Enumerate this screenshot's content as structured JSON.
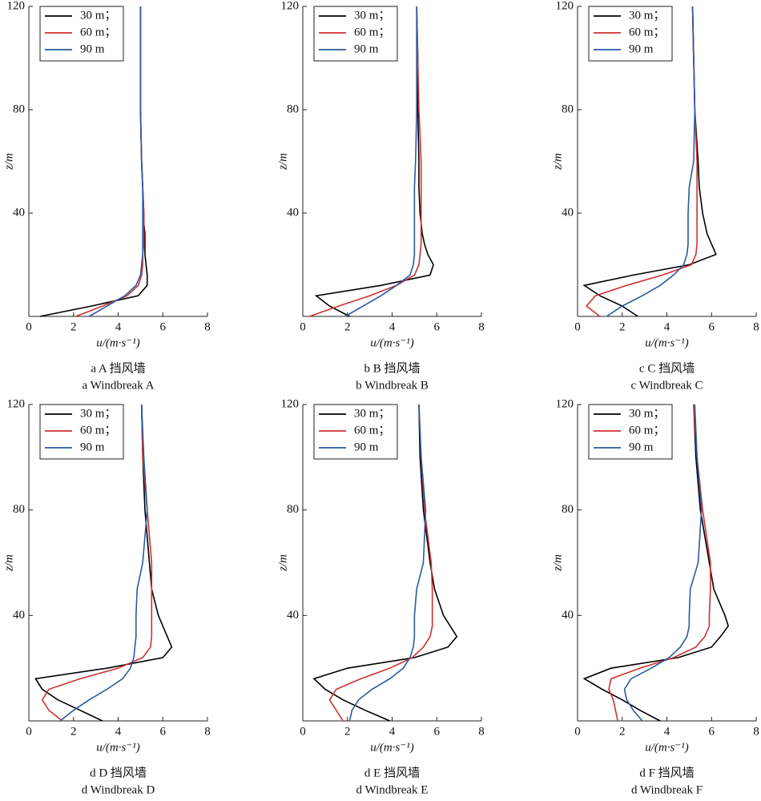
{
  "chart_data": [
    {
      "type": "line",
      "x_label": "u/(m·s⁻¹)",
      "y_label": "z/m",
      "caption_cn": "a A 挡风墙",
      "caption_en": "a Windbreak A",
      "y": [
        0,
        4,
        8,
        12,
        16,
        20,
        24,
        28,
        32,
        36,
        40,
        50,
        60,
        80,
        100,
        120
      ],
      "series": [
        {
          "name": "30 m；",
          "color": "#000000",
          "values": [
            0.5,
            2.8,
            4.9,
            5.3,
            5.3,
            5.25,
            5.2,
            5.2,
            5.2,
            5.15,
            5.15,
            5.1,
            5.05,
            5.0,
            5.0,
            5.0
          ]
        },
        {
          "name": "60 m；",
          "color": "#d03030",
          "values": [
            2.1,
            3.3,
            4.4,
            4.9,
            5.05,
            5.1,
            5.1,
            5.15,
            5.15,
            5.15,
            5.15,
            5.1,
            5.05,
            5.0,
            5.0,
            5.0
          ]
        },
        {
          "name": "90 m",
          "color": "#2a5aa0",
          "values": [
            2.7,
            3.5,
            4.3,
            4.8,
            5.0,
            5.05,
            5.1,
            5.1,
            5.1,
            5.1,
            5.1,
            5.1,
            5.05,
            5.0,
            5.0,
            5.0
          ]
        }
      ],
      "xlim": [
        0,
        8
      ],
      "xticks": [
        0,
        2,
        4,
        6,
        8
      ],
      "ylim": [
        0,
        120
      ],
      "yticks": [
        40,
        80,
        120
      ],
      "legend": "upper left"
    },
    {
      "type": "line",
      "x_label": "u/(m·s⁻¹)",
      "y_label": "z/m",
      "caption_cn": "b B 挡风墙",
      "caption_en": "b Windbreak B",
      "y": [
        0,
        4,
        8,
        12,
        16,
        20,
        24,
        28,
        32,
        36,
        40,
        50,
        60,
        80,
        100,
        120
      ],
      "series": [
        {
          "name": "30 m；",
          "color": "#000000",
          "values": [
            2.1,
            1.2,
            0.6,
            3.5,
            5.7,
            5.85,
            5.6,
            5.45,
            5.35,
            5.3,
            5.25,
            5.2,
            5.2,
            5.15,
            5.15,
            5.1
          ]
        },
        {
          "name": "60 m；",
          "color": "#d03030",
          "values": [
            0.3,
            1.6,
            3.0,
            4.2,
            5.0,
            5.2,
            5.25,
            5.3,
            5.3,
            5.3,
            5.3,
            5.3,
            5.3,
            5.2,
            5.15,
            5.1
          ]
        },
        {
          "name": "90 m",
          "color": "#2a5aa0",
          "values": [
            1.9,
            2.7,
            3.5,
            4.2,
            4.8,
            4.95,
            5.0,
            5.0,
            5.0,
            5.0,
            5.0,
            5.0,
            5.05,
            5.1,
            5.1,
            5.1
          ]
        }
      ],
      "xlim": [
        0,
        8
      ],
      "xticks": [
        0,
        2,
        4,
        6,
        8
      ],
      "ylim": [
        0,
        120
      ],
      "yticks": [
        40,
        80,
        120
      ],
      "legend": "upper left"
    },
    {
      "type": "line",
      "x_label": "u/(m·s⁻¹)",
      "y_label": "z/m",
      "caption_cn": "c C 挡风墙",
      "caption_en": "c Windbreak C",
      "y": [
        0,
        4,
        8,
        12,
        16,
        20,
        24,
        28,
        32,
        36,
        40,
        50,
        60,
        80,
        100,
        120
      ],
      "series": [
        {
          "name": "30 m；",
          "color": "#000000",
          "values": [
            2.7,
            2.0,
            1.0,
            0.3,
            2.5,
            5.0,
            6.2,
            6.0,
            5.8,
            5.7,
            5.6,
            5.45,
            5.4,
            5.25,
            5.2,
            5.15
          ]
        },
        {
          "name": "60 m；",
          "color": "#d03030",
          "values": [
            1.0,
            0.4,
            0.8,
            2.2,
            3.8,
            5.1,
            5.3,
            5.35,
            5.35,
            5.35,
            5.35,
            5.35,
            5.35,
            5.25,
            5.2,
            5.15
          ]
        },
        {
          "name": "90 m",
          "color": "#2a5aa0",
          "values": [
            1.3,
            2.0,
            2.9,
            3.7,
            4.3,
            4.75,
            4.9,
            4.95,
            4.95,
            4.95,
            4.95,
            5.0,
            5.2,
            5.25,
            5.2,
            5.15
          ]
        }
      ],
      "xlim": [
        0,
        8
      ],
      "xticks": [
        0,
        2,
        4,
        6,
        8
      ],
      "ylim": [
        0,
        120
      ],
      "yticks": [
        40,
        80,
        120
      ],
      "legend": "upper left"
    },
    {
      "type": "line",
      "x_label": "u/(m·s⁻¹)",
      "y_label": "z/m",
      "caption_cn": "d D 挡风墙",
      "caption_en": "d Windbreak D",
      "y": [
        0,
        4,
        8,
        12,
        16,
        20,
        24,
        28,
        32,
        36,
        40,
        50,
        60,
        80,
        100,
        120
      ],
      "series": [
        {
          "name": "30 m；",
          "color": "#000000",
          "values": [
            3.3,
            2.3,
            1.3,
            0.6,
            0.3,
            3.5,
            6.0,
            6.4,
            6.2,
            6.0,
            5.8,
            5.5,
            5.4,
            5.2,
            5.1,
            5.05
          ]
        },
        {
          "name": "60 m；",
          "color": "#d03030",
          "values": [
            1.5,
            0.9,
            0.6,
            0.9,
            2.3,
            4.0,
            5.1,
            5.45,
            5.5,
            5.5,
            5.5,
            5.5,
            5.5,
            5.3,
            5.1,
            5.05
          ]
        },
        {
          "name": "90 m",
          "color": "#2a5aa0",
          "values": [
            1.4,
            2.0,
            2.7,
            3.5,
            4.2,
            4.55,
            4.7,
            4.75,
            4.8,
            4.8,
            4.8,
            4.85,
            5.1,
            5.3,
            5.15,
            5.05
          ]
        }
      ],
      "xlim": [
        0,
        8
      ],
      "xticks": [
        0,
        2,
        4,
        6,
        8
      ],
      "ylim": [
        0,
        120
      ],
      "yticks": [
        40,
        80,
        120
      ],
      "legend": "upper left"
    },
    {
      "type": "line",
      "x_label": "u/(m·s⁻¹)",
      "y_label": "z/m",
      "caption_cn": "d E 挡风墙",
      "caption_en": "d Windbreak E",
      "y": [
        0,
        4,
        8,
        12,
        16,
        20,
        24,
        28,
        32,
        36,
        40,
        50,
        60,
        80,
        100,
        120
      ],
      "series": [
        {
          "name": "30 m；",
          "color": "#000000",
          "values": [
            3.9,
            2.8,
            1.8,
            1.0,
            0.5,
            2.0,
            5.0,
            6.5,
            6.9,
            6.6,
            6.3,
            5.9,
            5.7,
            5.4,
            5.25,
            5.2
          ]
        },
        {
          "name": "60 m；",
          "color": "#d03030",
          "values": [
            1.8,
            1.5,
            1.2,
            1.5,
            2.6,
            3.9,
            4.9,
            5.4,
            5.7,
            5.8,
            5.8,
            5.8,
            5.75,
            5.45,
            5.3,
            5.2
          ]
        },
        {
          "name": "90 m",
          "color": "#2a5aa0",
          "values": [
            2.1,
            2.2,
            2.5,
            3.1,
            3.9,
            4.5,
            4.8,
            4.95,
            5.0,
            5.0,
            5.0,
            5.1,
            5.4,
            5.5,
            5.3,
            5.2
          ]
        }
      ],
      "xlim": [
        0,
        8
      ],
      "xticks": [
        0,
        2,
        4,
        6,
        8
      ],
      "ylim": [
        0,
        120
      ],
      "yticks": [
        40,
        80,
        120
      ],
      "legend": "upper left"
    },
    {
      "type": "line",
      "x_label": "u/(m·s⁻¹)",
      "y_label": "z/m",
      "caption_cn": "d F 挡风墙",
      "caption_en": "d Windbreak F",
      "y": [
        0,
        4,
        8,
        12,
        16,
        20,
        24,
        28,
        32,
        36,
        40,
        50,
        60,
        80,
        100,
        120
      ],
      "series": [
        {
          "name": "30 m；",
          "color": "#000000",
          "values": [
            3.7,
            2.8,
            2.0,
            1.1,
            0.3,
            1.5,
            4.5,
            6.0,
            6.4,
            6.75,
            6.6,
            6.1,
            5.9,
            5.5,
            5.3,
            5.2
          ]
        },
        {
          "name": "60 m；",
          "color": "#d03030",
          "values": [
            1.8,
            1.7,
            1.6,
            1.4,
            1.5,
            2.8,
            4.3,
            5.3,
            5.7,
            5.9,
            5.9,
            5.95,
            5.95,
            5.6,
            5.35,
            5.2
          ]
        },
        {
          "name": "90 m",
          "color": "#2a5aa0",
          "values": [
            2.9,
            2.5,
            2.2,
            2.1,
            2.4,
            3.3,
            4.1,
            4.6,
            4.9,
            5.0,
            5.0,
            5.05,
            5.4,
            5.55,
            5.35,
            5.25
          ]
        }
      ],
      "xlim": [
        0,
        8
      ],
      "xticks": [
        0,
        2,
        4,
        6,
        8
      ],
      "ylim": [
        0,
        120
      ],
      "yticks": [
        40,
        80,
        120
      ],
      "legend": "upper left"
    }
  ]
}
